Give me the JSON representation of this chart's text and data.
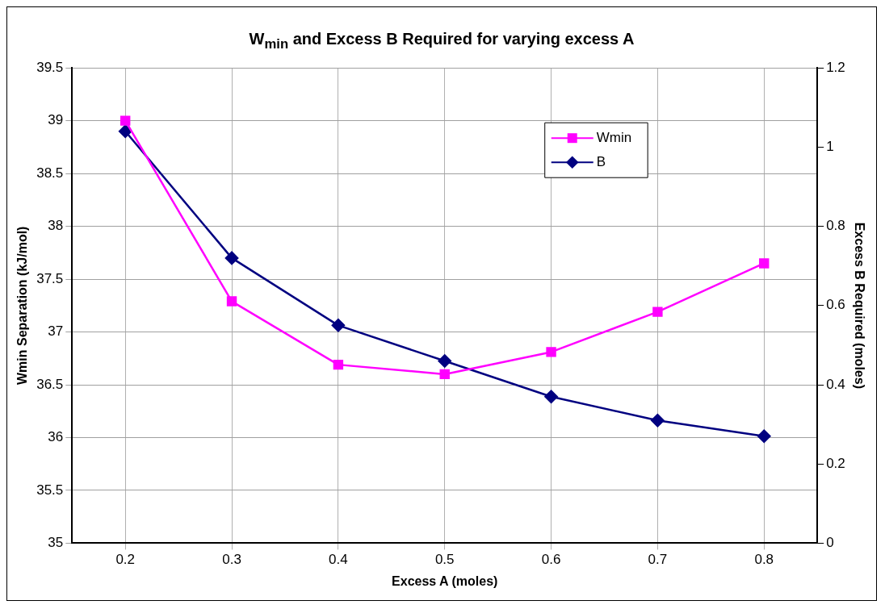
{
  "chart_data": {
    "type": "line",
    "title": "W$_{min}$ and Excess B Required for varying excess A",
    "xlabel": "Excess A (moles)",
    "ylabel": "Wmin Separation (kJ/mol)",
    "y2label": "Excess B Required (moles)",
    "categories": [
      "0.2",
      "0.3",
      "0.4",
      "0.5",
      "0.6",
      "0.7",
      "0.8"
    ],
    "series": [
      {
        "name": "Wmin",
        "color": "#ff00ff",
        "marker": "square",
        "values": [
          39.0,
          37.29,
          36.69,
          36.6,
          36.81,
          37.19,
          37.65
        ]
      },
      {
        "name": "B",
        "color": "#000080",
        "marker": "diamond",
        "axis": "y2",
        "values": [
          1.04,
          0.72,
          0.55,
          0.46,
          0.37,
          0.31,
          0.27
        ]
      }
    ],
    "ylim": [
      35,
      39.5
    ],
    "yticks": [
      35,
      35.5,
      36,
      36.5,
      37,
      37.5,
      38,
      38.5,
      39,
      39.5
    ],
    "y2lim": [
      0,
      1.2
    ],
    "y2ticks": [
      0,
      0.2,
      0.4,
      0.6,
      0.8,
      1,
      1.2
    ],
    "grid": true,
    "legend": "top right"
  }
}
